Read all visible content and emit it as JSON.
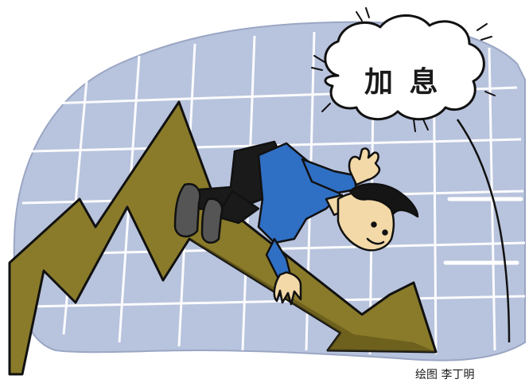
{
  "speech_bubble": {
    "text": "加 息"
  },
  "credit": {
    "text": "绘图 李丁明"
  },
  "colors": {
    "background": "#ffffff",
    "backdrop": "#b8c3dd",
    "grid": "#ffffff",
    "arrow": "#8a7b2a",
    "arrow_shadow": "#5c5018",
    "shirt": "#2f6fc4",
    "pants": "#1a1a1a",
    "skin": "#f3d9a8",
    "hair": "#151515",
    "outline": "#111111"
  },
  "icons": [
    "falling-arrow-icon",
    "falling-man-icon",
    "cloud-bubble-icon",
    "grid-pattern-icon"
  ]
}
